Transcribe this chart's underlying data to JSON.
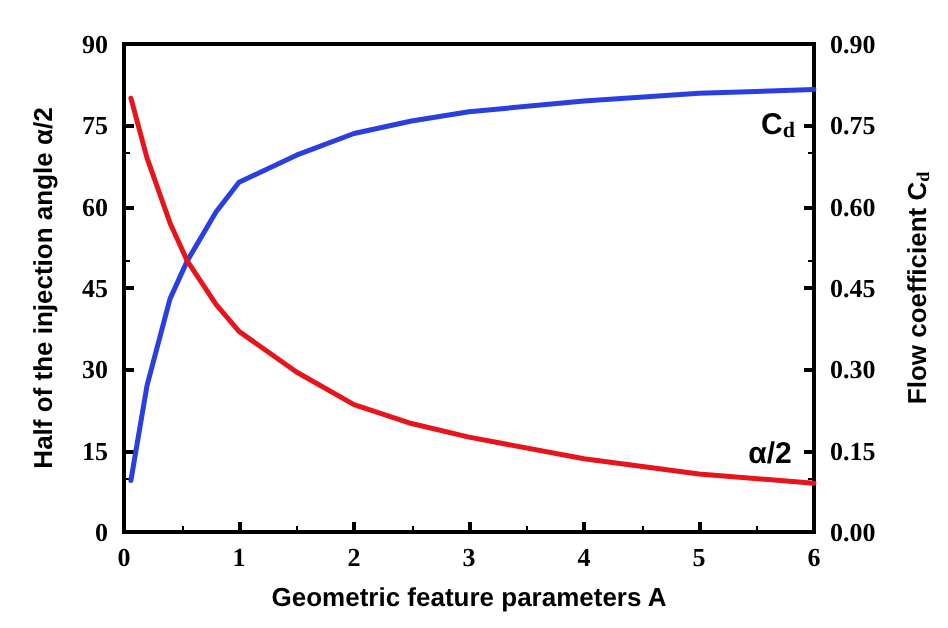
{
  "chart_data": {
    "type": "line",
    "xlabel": "Geometric feature parameters A",
    "ylabel": "Half of the injection angle α/2",
    "y2label": "Flow coefficient C$_{d}$",
    "xlim": [
      0,
      6
    ],
    "xticks": [
      0,
      1,
      2,
      3,
      4,
      5,
      6
    ],
    "ylim": [
      0,
      90
    ],
    "yticks": [
      0,
      15,
      30,
      45,
      60,
      75,
      90
    ],
    "y2lim": [
      0,
      0.9
    ],
    "y2ticks": [
      {
        "value": 0,
        "label": "0.00"
      },
      {
        "value": 0.15,
        "label": "0.15"
      },
      {
        "value": 0.3,
        "label": "0.30"
      },
      {
        "value": 0.45,
        "label": "0.45"
      },
      {
        "value": 0.6,
        "label": "0.60"
      },
      {
        "value": 0.75,
        "label": "0.75"
      },
      {
        "value": 0.9,
        "label": "0.90"
      }
    ],
    "x": [
      0.06,
      0.2,
      0.4,
      0.55,
      0.8,
      1,
      1.5,
      2,
      2.5,
      3,
      4,
      5,
      6
    ],
    "series": [
      {
        "name": "α/2",
        "color": "#e8141c",
        "values": [
          80,
          69,
          57,
          50,
          42,
          37,
          29.5,
          23.5,
          20,
          17.5,
          13.5,
          10.7,
          9
        ]
      },
      {
        "name": "C$_{d}$",
        "color": "#2a3fe0",
        "axis": "y2",
        "values": [
          0.095,
          0.27,
          0.43,
          0.5,
          0.59,
          0.645,
          0.695,
          0.735,
          0.758,
          0.775,
          0.795,
          0.809,
          0.816
        ]
      }
    ],
    "grid": false,
    "legend": false,
    "marker": "none",
    "line_style": "solid"
  }
}
